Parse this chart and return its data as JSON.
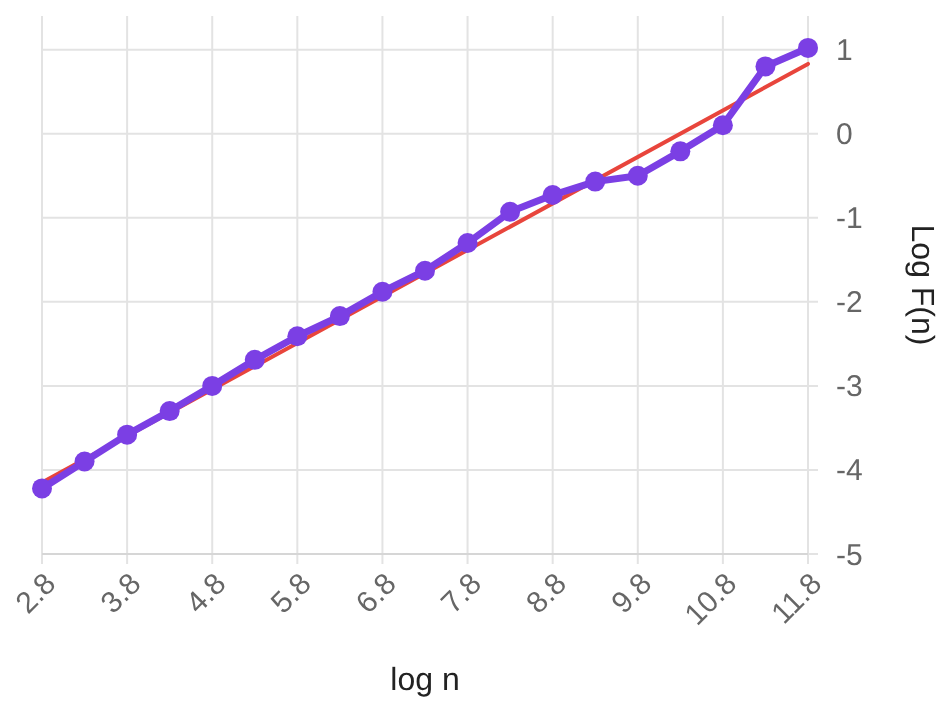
{
  "chart_data": {
    "type": "line",
    "xlabel": "log n",
    "ylabel": "Log F(n)",
    "xlim": [
      2.8,
      11.8
    ],
    "xticks": [
      2.8,
      3.8,
      4.8,
      5.8,
      6.8,
      7.8,
      8.8,
      9.8,
      10.8,
      11.8
    ],
    "ylim": [
      -5,
      1.4
    ],
    "yticks": [
      -5,
      -4,
      -3,
      -2,
      -1,
      0,
      1
    ],
    "grid": true,
    "series": [
      {
        "color": "#e8453c",
        "marker": "none",
        "x": [
          2.8,
          11.8
        ],
        "values": [
          -4.15,
          0.83
        ]
      },
      {
        "color": "#7b3fe4",
        "marker": "circle",
        "x": [
          2.8,
          3.3,
          3.8,
          4.3,
          4.8,
          5.3,
          5.8,
          6.3,
          6.8,
          7.3,
          7.8,
          8.3,
          8.8,
          9.3,
          9.8,
          10.3,
          10.8,
          11.3,
          11.8
        ],
        "values": [
          -4.22,
          -3.9,
          -3.58,
          -3.3,
          -3.0,
          -2.69,
          -2.41,
          -2.17,
          -1.88,
          -1.63,
          -1.3,
          -0.93,
          -0.73,
          -0.57,
          -0.5,
          -0.21,
          0.1,
          0.8,
          1.02
        ]
      }
    ]
  }
}
